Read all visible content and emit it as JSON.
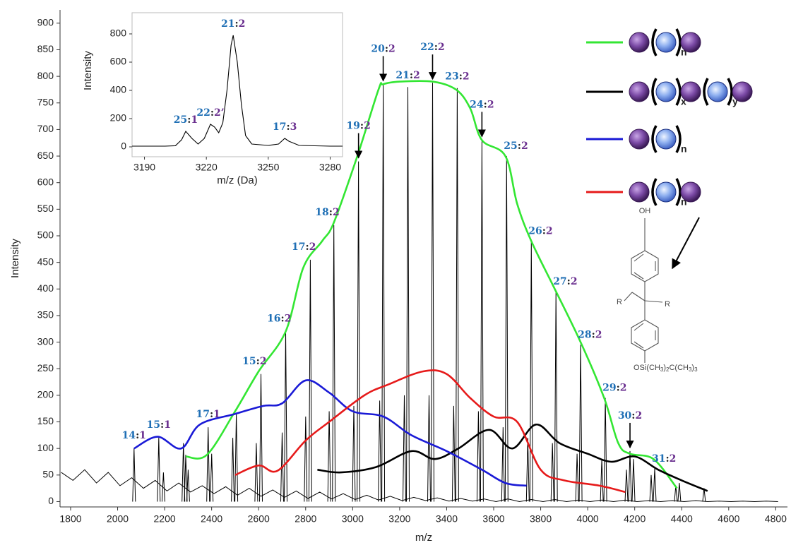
{
  "chart_data": {
    "type": "spectrum",
    "x_label": "m/z",
    "y_label": "Intensity",
    "xlim": [
      1755,
      4850
    ],
    "ylim": [
      -10,
      925
    ],
    "xticks": [
      1800,
      2000,
      2200,
      2400,
      2600,
      2800,
      3000,
      3200,
      3400,
      3600,
      3800,
      4000,
      4200,
      4400,
      4600,
      4800
    ],
    "yticks": [
      0,
      50,
      100,
      150,
      200,
      250,
      300,
      350,
      400,
      450,
      500,
      550,
      600,
      650,
      700,
      750,
      800,
      850,
      900
    ],
    "label_colors": [
      "#1f6fb5",
      "#6a2f8f"
    ],
    "baseline": {
      "color": "#000000",
      "x": [
        1760,
        1810,
        1860,
        1910,
        1960,
        2010,
        2060,
        2110,
        2160,
        2210,
        2260,
        2310,
        2360,
        2410,
        2460,
        2510,
        2560,
        2610,
        2660,
        2710,
        2760,
        2810,
        2860,
        2910,
        2960,
        3010,
        3060,
        3110,
        3160,
        3210,
        3260,
        3310,
        3360,
        3410,
        3460,
        3510,
        3560,
        3610,
        3660,
        3710,
        3760,
        3810,
        3860,
        3910,
        3960,
        4010,
        4060,
        4110,
        4160,
        4210,
        4260,
        4310,
        4360,
        4410,
        4460,
        4510,
        4560,
        4610,
        4660,
        4710,
        4760,
        4810
      ],
      "values": [
        55,
        40,
        60,
        35,
        55,
        30,
        45,
        25,
        40,
        20,
        35,
        18,
        30,
        15,
        28,
        12,
        25,
        10,
        22,
        8,
        20,
        6,
        18,
        5,
        15,
        4,
        12,
        3,
        10,
        2,
        8,
        2,
        7,
        1,
        6,
        1,
        5,
        0,
        5,
        0,
        4,
        0,
        4,
        0,
        3,
        0,
        3,
        0,
        3,
        0,
        2,
        0,
        2,
        0,
        2,
        0,
        1,
        0,
        1,
        0,
        1,
        0
      ]
    },
    "peaks": {
      "color": "#000000",
      "x": [
        2070,
        2175,
        2195,
        2280,
        2290,
        2300,
        2385,
        2400,
        2490,
        2505,
        2590,
        2610,
        2700,
        2715,
        2800,
        2820,
        2900,
        2920,
        3005,
        3025,
        3115,
        3130,
        3220,
        3235,
        3325,
        3340,
        3430,
        3445,
        3535,
        3550,
        3640,
        3655,
        3745,
        3760,
        3850,
        3865,
        3955,
        3970,
        4060,
        4075,
        4165,
        4180,
        4195,
        4270,
        4285,
        4375,
        4390,
        4495
      ],
      "values": [
        100,
        120,
        55,
        110,
        88,
        60,
        140,
        90,
        120,
        165,
        110,
        240,
        130,
        320,
        160,
        455,
        170,
        520,
        180,
        640,
        190,
        785,
        200,
        780,
        200,
        788,
        180,
        778,
        170,
        680,
        140,
        650,
        120,
        490,
        110,
        395,
        90,
        295,
        80,
        195,
        60,
        95,
        80,
        50,
        62,
        30,
        35,
        25
      ]
    },
    "series": [
      {
        "color": "#33e633",
        "subscripts": [
          "n"
        ],
        "x": [
          2290,
          2380,
          2500,
          2600,
          2715,
          2790,
          2870,
          2920,
          3020,
          3110,
          3130,
          3200,
          3340,
          3440,
          3500,
          3550,
          3650,
          3700,
          3760,
          3860,
          3970,
          4070,
          4130,
          4180,
          4280,
          4380
        ],
        "values": [
          85,
          88,
          170,
          245,
          320,
          440,
          490,
          525,
          650,
          775,
          785,
          790,
          790,
          775,
          740,
          680,
          650,
          560,
          490,
          400,
          300,
          195,
          110,
          90,
          80,
          25
        ]
      },
      {
        "color": "#000000",
        "subscripts": [
          "x",
          "y"
        ],
        "x": [
          2850,
          2950,
          3100,
          3250,
          3350,
          3450,
          3580,
          3680,
          3780,
          3880,
          4000,
          4100,
          4200,
          4300,
          4400,
          4510
        ],
        "values": [
          60,
          55,
          65,
          95,
          80,
          100,
          135,
          100,
          145,
          110,
          90,
          75,
          85,
          60,
          40,
          20
        ]
      },
      {
        "color": "#1a1ad6",
        "subscripts": [
          "n"
        ],
        "x": [
          2070,
          2170,
          2270,
          2350,
          2500,
          2620,
          2700,
          2800,
          2900,
          3000,
          3130,
          3250,
          3400,
          3550,
          3650,
          3740
        ],
        "values": [
          100,
          122,
          100,
          145,
          165,
          180,
          185,
          228,
          205,
          170,
          160,
          125,
          95,
          60,
          35,
          30
        ]
      },
      {
        "color": "#e61a1a",
        "subscripts": [
          "n"
        ],
        "x": [
          2500,
          2600,
          2680,
          2800,
          2900,
          3050,
          3150,
          3300,
          3400,
          3500,
          3600,
          3700,
          3800,
          3900,
          4050,
          4160
        ],
        "values": [
          50,
          68,
          58,
          115,
          150,
          200,
          220,
          245,
          240,
          195,
          160,
          150,
          60,
          40,
          30,
          18
        ]
      }
    ],
    "annotations": [
      {
        "text": "14:1",
        "at": 2070,
        "arrow": false
      },
      {
        "text": "15:1",
        "at": 2175,
        "arrow": false
      },
      {
        "text": "17:1",
        "at": 2385,
        "arrow": false
      },
      {
        "text": "15:2",
        "at": 2610,
        "arrow": false
      },
      {
        "text": "16:2",
        "at": 2715,
        "arrow": false
      },
      {
        "text": "17:2",
        "at": 2820,
        "arrow": false
      },
      {
        "text": "18:2",
        "at": 2920,
        "arrow": false
      },
      {
        "text": "19:2",
        "at": 3025,
        "arrow": true
      },
      {
        "text": "20:2",
        "at": 3130,
        "arrow": true
      },
      {
        "text": "21:2",
        "at": 3235,
        "arrow": false
      },
      {
        "text": "22:2",
        "at": 3340,
        "arrow": true
      },
      {
        "text": "23:2",
        "at": 3445,
        "arrow": false
      },
      {
        "text": "24:2",
        "at": 3550,
        "arrow": true
      },
      {
        "text": "25:2",
        "at": 3655,
        "arrow": false
      },
      {
        "text": "26:2",
        "at": 3760,
        "arrow": false
      },
      {
        "text": "27:2",
        "at": 3865,
        "arrow": false
      },
      {
        "text": "28:2",
        "at": 3970,
        "arrow": false
      },
      {
        "text": "29:2",
        "at": 4075,
        "arrow": false
      },
      {
        "text": "30:2",
        "at": 4180,
        "arrow": true
      },
      {
        "text": "31:2",
        "at": 4285,
        "arrow": false
      }
    ],
    "inset": {
      "type": "line",
      "x_label": "m/z (Da)",
      "y_label": "Intensity",
      "xlim": [
        3184,
        3286
      ],
      "ylim": [
        -70,
        950
      ],
      "xticks": [
        3190,
        3220,
        3250,
        3280
      ],
      "yticks": [
        0,
        200,
        400,
        600,
        800
      ],
      "color": "#000000",
      "x": [
        3184,
        3200,
        3205,
        3208,
        3210,
        3213,
        3216,
        3219,
        3222,
        3224,
        3226,
        3228,
        3230,
        3232,
        3233,
        3235,
        3237,
        3239,
        3242,
        3250,
        3255,
        3258,
        3260,
        3265,
        3280,
        3286
      ],
      "values": [
        5,
        5,
        8,
        50,
        110,
        60,
        20,
        60,
        160,
        140,
        100,
        170,
        400,
        720,
        790,
        600,
        300,
        80,
        20,
        10,
        20,
        60,
        40,
        10,
        5,
        5
      ],
      "annotations": [
        {
          "text": "25:1",
          "at": 3210
        },
        {
          "text": "22:2’",
          "at": 3222
        },
        {
          "text": "21:2",
          "at": 3233
        },
        {
          "text": "17:3",
          "at": 3258
        }
      ]
    },
    "structure": {
      "hydroxyl": "OH",
      "r1": "R",
      "r2": "R",
      "silyl_ether": [
        "OSi(CH",
        "3",
        ")",
        "2",
        "C(CH",
        "3",
        ")",
        "3"
      ]
    }
  }
}
